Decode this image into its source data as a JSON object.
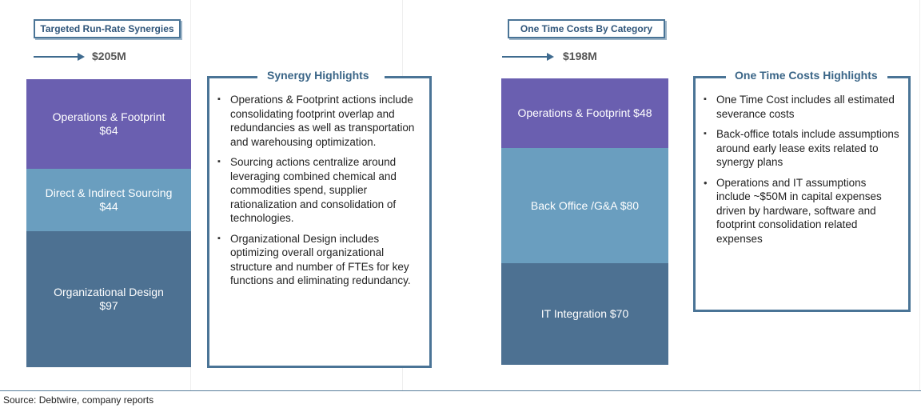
{
  "chart_data": [
    {
      "type": "bar",
      "title": "Targeted Run-Rate Synergies",
      "total_label": "$205M",
      "total": 205,
      "categories": [
        "Operations & Footprint",
        "Direct & Indirect Sourcing",
        "Organizational Design"
      ],
      "values": [
        64,
        44,
        97
      ],
      "value_labels": [
        "$64",
        "$44",
        "$97"
      ],
      "colors": [
        "#6a5fb0",
        "#6a9ebf",
        "#4d7192"
      ]
    },
    {
      "type": "bar",
      "title": "One Time Costs By Category",
      "total_label": "$198M",
      "total": 198,
      "categories": [
        "Operations & Footprint",
        "Back Office /G&A",
        "IT Integration"
      ],
      "values": [
        48,
        80,
        70
      ],
      "value_labels": [
        "$48",
        "$80",
        "$70"
      ],
      "colors": [
        "#6a5fb0",
        "#6a9ebf",
        "#4d7192"
      ]
    }
  ],
  "synergy_highlights": {
    "title": "Synergy Highlights",
    "items": [
      "Operations & Footprint actions include consolidating footprint overlap and redundancies as well as transportation and warehousing optimization.",
      "Sourcing actions centralize around leveraging combined chemical and commodities spend, supplier rationalization and consolidation of technologies.",
      "Organizational Design includes optimizing overall organizational structure and number of FTEs for key functions and eliminating redundancy."
    ]
  },
  "cost_highlights": {
    "title": "One Time Costs Highlights",
    "items": [
      "One Time Cost includes all estimated severance costs",
      "Back-office totals include assumptions around early lease exits related to synergy plans",
      "Operations and IT assumptions include ~$50M in capital expenses driven by hardware, software and footprint consolidation related expenses"
    ]
  },
  "footer": {
    "source": "Source: Debtwire, company reports"
  }
}
